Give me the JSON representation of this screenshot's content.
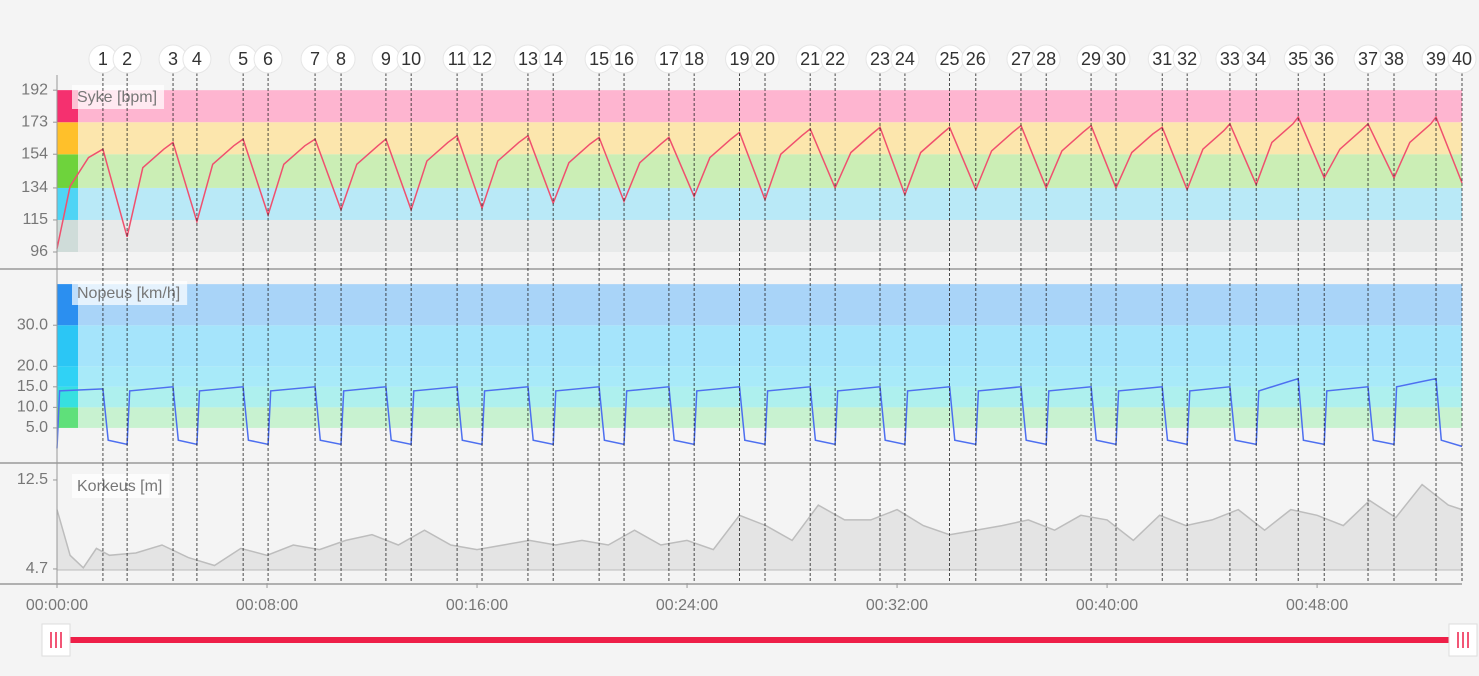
{
  "chart_data": [
    {
      "type": "line",
      "title": "Syke [bpm]",
      "color": "#f0506e",
      "ylim": [
        86.5,
        201
      ],
      "yticks": [
        96,
        115,
        134,
        154,
        173,
        192
      ],
      "zones": [
        {
          "from": 96,
          "to": 115,
          "color": "#e8eaea",
          "swatch": "#cfdcd9"
        },
        {
          "from": 115,
          "to": 134,
          "color": "#b9e9f7",
          "swatch": "#4fd4f5"
        },
        {
          "from": 134,
          "to": 154,
          "color": "#cbeeb5",
          "swatch": "#6ed33c"
        },
        {
          "from": 154,
          "to": 173,
          "color": "#fce6ad",
          "swatch": "#ffc02a"
        },
        {
          "from": 173,
          "to": 192,
          "color": "#feb5d0",
          "swatch": "#f5306f"
        }
      ],
      "x": [
        0,
        0.5,
        1.2,
        1.75,
        2.67,
        3.27,
        4.07,
        4.42,
        5.33,
        5.93,
        6.73,
        7.09,
        8.04,
        8.64,
        9.44,
        9.83,
        10.82,
        11.42,
        12.22,
        12.53,
        13.49,
        14.09,
        14.89,
        15.24,
        16.19,
        16.79,
        17.59,
        17.94,
        18.9,
        19.5,
        20.3,
        20.65,
        21.6,
        22.2,
        23.0,
        23.31,
        24.27,
        24.87,
        25.67,
        26.0,
        26.97,
        27.57,
        28.37,
        28.69,
        29.64,
        30.24,
        31.04,
        31.35,
        32.3,
        32.9,
        33.7,
        34.0,
        35.0,
        35.6,
        36.4,
        36.72,
        37.68,
        38.28,
        39.08,
        39.39,
        40.34,
        40.94,
        41.74,
        42.1,
        43.05,
        43.65,
        44.45,
        44.68,
        45.68,
        46.28,
        47.08,
        47.28,
        48.27,
        48.87,
        49.67,
        49.94,
        50.93,
        51.53,
        52.33,
        52.53,
        53.52
      ],
      "values": [
        98,
        135,
        152,
        157,
        105,
        146,
        157,
        161,
        114,
        148,
        159,
        163,
        118,
        148,
        159,
        163,
        121,
        148,
        159,
        163,
        121,
        150,
        161,
        165,
        122,
        150,
        161,
        165,
        125,
        149,
        160,
        164,
        126,
        149,
        160,
        164,
        129,
        152,
        163,
        167,
        127,
        154,
        165,
        169,
        134,
        155,
        166,
        170,
        130,
        155,
        166,
        170,
        133,
        156,
        167,
        171,
        134,
        156,
        167,
        171,
        134,
        155,
        166,
        170,
        133,
        157,
        168,
        172,
        136,
        161,
        172,
        176,
        140,
        157,
        168,
        172,
        140,
        161,
        172,
        176,
        137
      ]
    },
    {
      "type": "line",
      "title": "Nopeus [km/h]",
      "color": "#4d6ff0",
      "ylim": [
        -3.3,
        43.2
      ],
      "yticks": [
        {
          "value": 5,
          "label": "5.0"
        },
        {
          "value": 10,
          "label": "10.0"
        },
        {
          "value": 15,
          "label": "15.0"
        },
        {
          "value": 20,
          "label": "20.0"
        },
        {
          "value": 30,
          "label": "30.0"
        }
      ],
      "zones": [
        {
          "from": 5,
          "to": 10,
          "color": "#c8f2d0",
          "swatch": "#5fe07a"
        },
        {
          "from": 10,
          "to": 15,
          "color": "#aef0ee",
          "swatch": "#37e0e0"
        },
        {
          "from": 15,
          "to": 20,
          "color": "#a8eaf9",
          "swatch": "#30d2f5"
        },
        {
          "from": 20,
          "to": 30,
          "color": "#a5e4fb",
          "swatch": "#2bc6f5"
        },
        {
          "from": 30,
          "to": 40,
          "color": "#a9d4f8",
          "swatch": "#2b8ff0"
        }
      ],
      "x": [
        0,
        0.1,
        1.75,
        1.95,
        2.67,
        2.77,
        4.42,
        4.62,
        5.33,
        5.43,
        7.09,
        7.29,
        8.04,
        8.14,
        9.83,
        10.03,
        10.82,
        10.92,
        12.53,
        12.73,
        13.49,
        13.59,
        15.24,
        15.44,
        16.19,
        16.29,
        17.94,
        18.14,
        18.9,
        19.0,
        20.65,
        20.85,
        21.6,
        21.7,
        23.31,
        23.51,
        24.27,
        24.37,
        26.0,
        26.2,
        26.97,
        27.07,
        28.69,
        28.89,
        29.64,
        29.74,
        31.35,
        31.55,
        32.3,
        32.4,
        34.0,
        34.2,
        35.0,
        35.1,
        36.72,
        36.92,
        37.68,
        37.78,
        39.39,
        39.59,
        40.34,
        40.44,
        42.1,
        42.3,
        43.05,
        43.15,
        44.68,
        44.88,
        45.68,
        45.78,
        47.28,
        47.48,
        48.27,
        48.37,
        49.94,
        50.14,
        50.93,
        51.03,
        52.53,
        52.73,
        53.52
      ],
      "values": [
        0,
        14,
        14.5,
        2,
        1,
        14,
        15,
        2,
        1,
        14,
        15,
        2,
        1,
        14,
        15,
        2,
        1,
        14,
        15,
        2,
        1,
        14,
        15,
        2,
        1,
        14,
        15,
        2,
        1,
        14,
        15,
        2,
        1,
        14,
        15,
        2,
        1,
        14,
        15,
        2,
        1,
        14,
        15,
        2,
        1,
        14,
        15,
        2,
        1,
        14,
        15,
        2,
        1,
        14,
        15,
        2,
        1,
        14,
        15,
        2,
        1,
        14,
        15,
        2,
        1,
        14,
        15,
        2,
        1,
        14,
        17,
        2,
        1,
        14,
        15,
        2,
        1,
        15,
        17,
        2,
        0.5
      ]
    },
    {
      "type": "area",
      "title": "Korkeus [m]",
      "color": "#bdbdbd",
      "fill": "#e4e4e4",
      "ylim": [
        3.47,
        13.9
      ],
      "yticks": [
        4.7,
        12.5
      ],
      "xlim": [
        0,
        53.52
      ],
      "xticks": [
        {
          "value": 0,
          "label": "00:00:00"
        },
        {
          "value": 8,
          "label": "00:08:00"
        },
        {
          "value": 16,
          "label": "00:16:00"
        },
        {
          "value": 24,
          "label": "00:24:00"
        },
        {
          "value": 32,
          "label": "00:32:00"
        },
        {
          "value": 40,
          "label": "00:40:00"
        },
        {
          "value": 48,
          "label": "00:48:00"
        }
      ],
      "x": [
        0,
        0.5,
        1,
        1.5,
        2,
        3,
        4,
        5,
        6,
        7,
        8,
        9,
        10,
        11,
        12,
        13,
        14,
        15,
        16,
        17,
        18,
        19,
        20,
        21,
        22,
        23,
        24,
        25,
        26,
        27,
        28,
        29,
        30,
        31,
        32,
        33,
        34,
        35,
        36,
        37,
        38,
        39,
        40,
        41,
        42,
        43,
        44,
        45,
        46,
        47,
        48,
        49,
        50,
        51,
        52,
        53,
        53.52
      ],
      "values": [
        9.9,
        5.9,
        4.8,
        6.5,
        5.9,
        6.1,
        6.8,
        5.7,
        5.0,
        6.5,
        5.9,
        6.8,
        6.4,
        7.2,
        7.7,
        6.8,
        8.1,
        6.8,
        6.4,
        6.8,
        7.2,
        6.8,
        7.2,
        6.8,
        8.1,
        6.8,
        7.2,
        6.4,
        9.4,
        8.5,
        7.2,
        10.3,
        9.0,
        9.0,
        9.9,
        8.5,
        7.7,
        8.1,
        8.5,
        9.0,
        8.1,
        9.4,
        9.0,
        7.2,
        9.4,
        8.5,
        9.0,
        9.9,
        8.1,
        9.9,
        9.4,
        8.5,
        10.7,
        9.2,
        12.1,
        10.3,
        9.9
      ]
    }
  ],
  "lap_markers": {
    "labels": [
      1,
      2,
      3,
      4,
      5,
      6,
      7,
      8,
      9,
      10,
      11,
      12,
      13,
      14,
      15,
      16,
      17,
      18,
      19,
      20,
      21,
      22,
      23,
      24,
      25,
      26,
      27,
      28,
      29,
      30,
      31,
      32,
      33,
      34,
      35,
      36,
      37,
      38,
      39,
      40
    ],
    "x": [
      1.75,
      2.67,
      4.42,
      5.33,
      7.09,
      8.04,
      9.83,
      10.82,
      12.53,
      13.49,
      15.24,
      16.19,
      17.94,
      18.9,
      20.65,
      21.6,
      23.31,
      24.27,
      26.0,
      26.97,
      28.69,
      29.64,
      31.35,
      32.3,
      34.0,
      35.0,
      36.72,
      37.68,
      39.39,
      40.34,
      42.1,
      43.05,
      44.68,
      45.68,
      47.28,
      48.27,
      49.94,
      50.93,
      52.53,
      53.52
    ]
  }
}
